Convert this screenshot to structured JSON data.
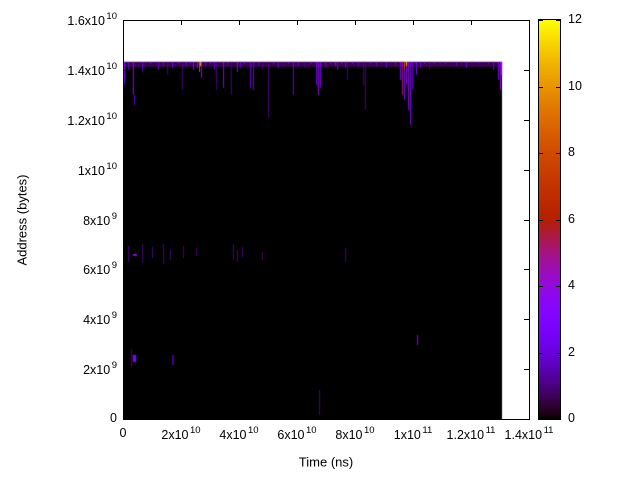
{
  "colors": {
    "background": "#ffffff",
    "frame": "#000000",
    "text": "#000000"
  },
  "chart_data": {
    "type": "heatmap",
    "title": "",
    "xlabel": "Time (ns)",
    "ylabel": "Address (bytes)",
    "x_unit_note": "tick values stored in units of 1e9 ns",
    "y_unit_note": "tick values stored in units of 1e9 bytes",
    "xlim_1e9": [
      0,
      140
    ],
    "ylim_1e9": [
      0,
      16
    ],
    "grid": false,
    "legend": "colorbar-right",
    "x_ticks": [
      {
        "v": 0,
        "label": "0"
      },
      {
        "v": 20,
        "label": "2x10^10"
      },
      {
        "v": 40,
        "label": "4x10^10"
      },
      {
        "v": 60,
        "label": "6x10^10"
      },
      {
        "v": 80,
        "label": "8x10^10"
      },
      {
        "v": 100,
        "label": "1x10^11"
      },
      {
        "v": 120,
        "label": "1.2x10^11"
      },
      {
        "v": 140,
        "label": "1.4x10^11"
      }
    ],
    "y_ticks": [
      {
        "v": 0,
        "label": "0"
      },
      {
        "v": 2,
        "label": "2x10^9"
      },
      {
        "v": 4,
        "label": "4x10^9"
      },
      {
        "v": 6,
        "label": "6x10^9"
      },
      {
        "v": 8,
        "label": "8x10^9"
      },
      {
        "v": 10,
        "label": "1x10^10"
      },
      {
        "v": 12,
        "label": "1.2x10^10"
      },
      {
        "v": 14,
        "label": "1.4x10^10"
      },
      {
        "v": 16,
        "label": "1.6x10^10"
      }
    ],
    "colorbar": {
      "min": 0,
      "max": 12,
      "ticks": [
        0,
        2,
        4,
        6,
        8,
        10,
        12
      ],
      "palette": "gnuplot default pm3d rgbformulae 7,5,15 (black-violet-purple-red-orange-yellow)"
    },
    "background_value": 0,
    "data_extent_1e9": {
      "t": [
        0,
        130.7
      ],
      "a": [
        0,
        14.32
      ]
    },
    "streaks_note": "each entry = [t0,t1,a0,a1,value] in 1e9 units; value maps through palette 0-12",
    "streaks_1e9": [
      [
        0,
        130.7,
        14.12,
        14.32,
        0.6
      ],
      [
        0,
        0.7,
        13.6,
        14.32,
        3
      ],
      [
        0.3,
        0.65,
        13.4,
        13.68,
        2
      ],
      [
        1.7,
        2.05,
        14,
        14.32,
        2
      ],
      [
        3.4,
        3.75,
        13,
        14.32,
        4
      ],
      [
        3.8,
        4.1,
        12.6,
        13,
        2
      ],
      [
        5.2,
        5.55,
        14.08,
        14.32,
        1
      ],
      [
        6.6,
        6.95,
        13.92,
        14.32,
        2
      ],
      [
        7.6,
        7.95,
        14.16,
        14.32,
        1
      ],
      [
        9.3,
        9.65,
        14.24,
        14.32,
        2
      ],
      [
        11,
        11.35,
        14.26,
        14.32,
        1
      ],
      [
        12.1,
        12.45,
        14,
        14.32,
        2
      ],
      [
        13.8,
        14.15,
        14.16,
        14.32,
        2
      ],
      [
        15.2,
        15.55,
        13.8,
        14.32,
        1
      ],
      [
        16.9,
        17.25,
        14.08,
        14.32,
        2
      ],
      [
        19,
        19.35,
        14.24,
        14.32,
        2
      ],
      [
        20.3,
        20.65,
        13.2,
        14.32,
        1
      ],
      [
        21.7,
        22.05,
        14.16,
        14.32,
        2
      ],
      [
        23.1,
        23.45,
        14.24,
        14.32,
        2
      ],
      [
        24.1,
        24.45,
        14,
        14.32,
        3
      ],
      [
        25.5,
        25.85,
        14.08,
        14.32,
        3
      ],
      [
        26.2,
        26.55,
        13.92,
        14.32,
        8
      ],
      [
        26.6,
        26.95,
        14.16,
        14.32,
        11
      ],
      [
        26.9,
        27.25,
        13.68,
        14.32,
        4
      ],
      [
        28.3,
        28.65,
        14.16,
        14.32,
        2
      ],
      [
        30,
        30.35,
        14.24,
        14.32,
        2
      ],
      [
        31.4,
        31.75,
        14,
        14.32,
        2
      ],
      [
        32.1,
        32.45,
        13.2,
        14.32,
        1
      ],
      [
        34.5,
        34.85,
        13.28,
        14.32,
        3
      ],
      [
        35.9,
        36.25,
        14.16,
        14.32,
        2
      ],
      [
        37.2,
        37.55,
        13,
        14.32,
        1
      ],
      [
        39.3,
        39.65,
        13.92,
        14.32,
        3
      ],
      [
        40.3,
        40.65,
        14.08,
        14.32,
        2
      ],
      [
        41.7,
        42.05,
        14.24,
        14.32,
        2
      ],
      [
        43.8,
        44.15,
        13.28,
        14.32,
        2
      ],
      [
        44.8,
        45.15,
        13.2,
        14.32,
        2
      ],
      [
        46.6,
        46.95,
        14.2,
        14.32,
        2
      ],
      [
        47.9,
        48.25,
        14,
        14.32,
        1
      ],
      [
        50,
        50.35,
        12.07,
        14.32,
        1
      ],
      [
        51.7,
        52.05,
        14.24,
        14.32,
        2
      ],
      [
        53.4,
        53.75,
        14.08,
        14.32,
        2
      ],
      [
        55.5,
        55.85,
        14.16,
        14.32,
        1
      ],
      [
        56.9,
        57.25,
        14.24,
        14.32,
        2
      ],
      [
        58.6,
        58.95,
        13,
        14.32,
        2
      ],
      [
        60.3,
        60.65,
        14.16,
        14.32,
        2
      ],
      [
        62.4,
        62.75,
        14.08,
        14.32,
        1
      ],
      [
        64.5,
        64.85,
        14.24,
        14.32,
        2
      ],
      [
        66.6,
        66.95,
        13.4,
        14.32,
        3
      ],
      [
        67.2,
        67.55,
        13,
        14.32,
        4
      ],
      [
        67.9,
        68.25,
        13.28,
        14.32,
        3
      ],
      [
        69.7,
        70.05,
        14.08,
        14.32,
        2
      ],
      [
        71.4,
        71.75,
        14.24,
        14.32,
        2
      ],
      [
        73.1,
        73.45,
        14.16,
        14.32,
        3
      ],
      [
        73.8,
        74.15,
        14,
        14.32,
        2
      ],
      [
        75.2,
        75.55,
        14.24,
        14.32,
        2
      ],
      [
        76.6,
        76.95,
        14.08,
        14.32,
        2
      ],
      [
        77.2,
        77.55,
        13.6,
        14.32,
        1
      ],
      [
        79,
        79.35,
        14.24,
        14.32,
        2
      ],
      [
        81,
        81.35,
        14.16,
        14.32,
        2
      ],
      [
        82.8,
        83.15,
        13.4,
        14.32,
        1
      ],
      [
        83.4,
        83.75,
        12.4,
        14.32,
        1
      ],
      [
        85.2,
        85.55,
        14.24,
        14.32,
        2
      ],
      [
        87.2,
        87.55,
        14.16,
        14.32,
        2
      ],
      [
        89,
        89.35,
        14.24,
        14.32,
        1
      ],
      [
        90.7,
        91.05,
        14.08,
        14.32,
        2
      ],
      [
        92.1,
        92.45,
        14.24,
        14.32,
        1
      ],
      [
        93.8,
        94.15,
        14.16,
        14.32,
        2
      ],
      [
        95.5,
        95.85,
        13.6,
        14.32,
        3
      ],
      [
        96.2,
        96.55,
        13,
        14.32,
        5
      ],
      [
        96.9,
        97.25,
        14,
        14.32,
        8
      ],
      [
        96.9,
        97.25,
        12.8,
        14,
        3
      ],
      [
        97.6,
        97.95,
        14.16,
        14.32,
        11
      ],
      [
        97.6,
        97.95,
        13.4,
        14.16,
        4
      ],
      [
        98.3,
        98.65,
        12.4,
        14.32,
        4
      ],
      [
        99,
        99.35,
        11.8,
        14.32,
        3
      ],
      [
        99.7,
        100.05,
        13.2,
        14.32,
        2
      ],
      [
        101,
        101.35,
        13.8,
        14.32,
        3
      ],
      [
        102.4,
        102.75,
        14.08,
        14.32,
        2
      ],
      [
        103.8,
        104.15,
        14.24,
        14.32,
        2
      ],
      [
        105.5,
        105.85,
        14,
        14.32,
        1
      ],
      [
        107.2,
        107.55,
        14.24,
        14.32,
        2
      ],
      [
        109.3,
        109.65,
        14.16,
        14.32,
        1
      ],
      [
        111,
        111.35,
        14.24,
        14.32,
        2
      ],
      [
        112.8,
        113.15,
        14.26,
        14.32,
        1
      ],
      [
        114.8,
        115.15,
        14.16,
        14.32,
        2
      ],
      [
        116.6,
        116.95,
        14.24,
        14.32,
        1
      ],
      [
        118.3,
        118.65,
        14.08,
        14.32,
        2
      ],
      [
        120.3,
        120.65,
        14.24,
        14.32,
        1
      ],
      [
        122.4,
        122.75,
        14.26,
        14.32,
        2
      ],
      [
        124.1,
        124.45,
        14.16,
        14.32,
        1
      ],
      [
        125.9,
        126.25,
        14.24,
        14.32,
        2
      ],
      [
        127.6,
        127.95,
        14,
        14.32,
        2
      ],
      [
        129.3,
        129.65,
        13.6,
        14.32,
        3
      ],
      [
        130,
        130.35,
        13.2,
        14.32,
        4
      ],
      [
        130.4,
        130.7,
        13.8,
        14.32,
        3
      ],
      [
        1.7,
        2.05,
        6.3,
        6.94,
        1
      ],
      [
        3.4,
        4.8,
        6.54,
        6.62,
        4
      ],
      [
        6.6,
        6.95,
        6.26,
        7.02,
        1
      ],
      [
        10,
        10.35,
        6.46,
        6.9,
        1
      ],
      [
        13.8,
        14.15,
        6.22,
        7.02,
        1
      ],
      [
        16.2,
        16.55,
        6.38,
        6.78,
        1
      ],
      [
        20.7,
        21.05,
        6.46,
        6.94,
        1
      ],
      [
        25.2,
        25.55,
        6.54,
        6.86,
        1
      ],
      [
        37.9,
        38.25,
        6.38,
        7.02,
        1
      ],
      [
        39.3,
        39.65,
        6.3,
        6.78,
        1
      ],
      [
        41,
        41.35,
        6.5,
        6.9,
        1
      ],
      [
        47.9,
        48.25,
        6.38,
        6.7,
        1
      ],
      [
        76.6,
        76.95,
        6.3,
        6.86,
        1
      ],
      [
        2.8,
        3.15,
        2.1,
        2.8,
        1
      ],
      [
        3.4,
        4.5,
        2.29,
        2.57,
        3
      ],
      [
        16.9,
        17.6,
        2.17,
        2.57,
        1
      ],
      [
        67.6,
        67.95,
        0.16,
        1.16,
        1
      ],
      [
        101.4,
        101.75,
        2.97,
        3.37,
        3
      ]
    ]
  }
}
